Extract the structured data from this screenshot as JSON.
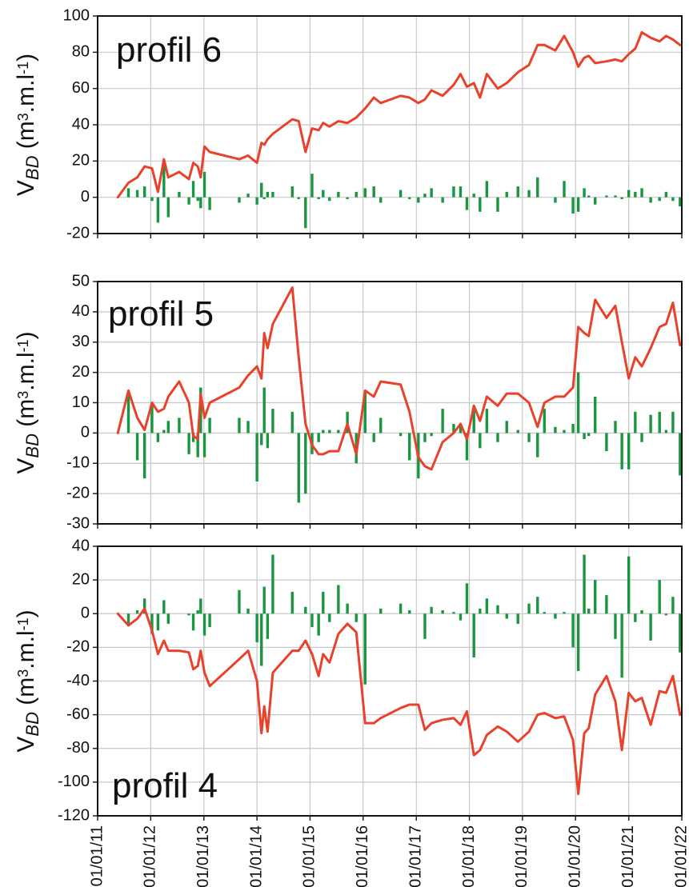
{
  "chart_data": [
    {
      "type": "combo",
      "annotation": "profil 6",
      "ylabel": {
        "parts": [
          "V",
          "BD",
          " (m",
          "3",
          ".m.l",
          "-1",
          ")"
        ],
        "styles": [
          "normal",
          "sub-italic",
          "normal",
          "sup",
          "normal",
          "sup",
          "normal"
        ]
      },
      "x": [
        "2011-05-20",
        "2011-08-01",
        "2011-10-01",
        "2011-11-20",
        "2012-01-10",
        "2012-02-20",
        "2012-04-01",
        "2012-05-01",
        "2012-07-15",
        "2012-09-20",
        "2012-10-20",
        "2012-11-20",
        "2012-12-10",
        "2013-01-05",
        "2013-02-10",
        "2013-09-01",
        "2013-11-01",
        "2014-01-01",
        "2014-02-01",
        "2014-02-20",
        "2014-03-15",
        "2014-04-20",
        "2014-09-01",
        "2014-10-15",
        "2014-12-01",
        "2015-01-15",
        "2015-03-01",
        "2015-04-01",
        "2015-05-15",
        "2015-07-15",
        "2015-09-15",
        "2015-11-15",
        "2016-01-15",
        "2016-03-15",
        "2016-05-01",
        "2016-09-15",
        "2016-11-15",
        "2017-01-15",
        "2017-03-01",
        "2017-04-15",
        "2017-07-01",
        "2017-09-15",
        "2017-11-01",
        "2017-12-15",
        "2018-02-01",
        "2018-03-15",
        "2018-05-01",
        "2018-07-15",
        "2018-09-15",
        "2018-12-01",
        "2019-02-15",
        "2019-04-15",
        "2019-06-01",
        "2019-08-15",
        "2019-10-15",
        "2019-12-15",
        "2020-01-20",
        "2020-03-01",
        "2020-04-01",
        "2020-05-15",
        "2020-08-01",
        "2020-10-01",
        "2020-11-15",
        "2021-01-01",
        "2021-02-15",
        "2021-04-01",
        "2021-06-01",
        "2021-08-01",
        "2021-09-15",
        "2021-11-01",
        "2021-12-20"
      ],
      "series": [
        {
          "type": "bar",
          "color": "#1a9641",
          "values": [
            null,
            5,
            4,
            6,
            -2,
            -14,
            18,
            -11,
            3,
            -4,
            9,
            -2,
            -6,
            14,
            -7,
            -3,
            2,
            -4,
            8,
            -1,
            3,
            3,
            6,
            -1,
            -17,
            13,
            -1,
            4,
            -2,
            3,
            -1,
            3,
            5,
            6,
            -3,
            4,
            -1,
            -3,
            2,
            5,
            -3,
            6,
            6,
            -7,
            2,
            -8,
            9,
            -8,
            3,
            6,
            4,
            11,
            0,
            -3,
            9,
            -9,
            -8,
            5,
            1,
            -4,
            1,
            1,
            -1,
            4,
            3,
            5,
            -3,
            -2,
            3,
            -2,
            -5
          ]
        },
        {
          "type": "line",
          "color": "#e8412c",
          "values": [
            0,
            8,
            11,
            17,
            16,
            3,
            21,
            11,
            14,
            10,
            19,
            17,
            11,
            28,
            25,
            21,
            23,
            19,
            30,
            29,
            32,
            35,
            43,
            42,
            25,
            38,
            37,
            41,
            39,
            42,
            41,
            44,
            49,
            55,
            52,
            56,
            55,
            52,
            54,
            59,
            56,
            62,
            68,
            61,
            63,
            55,
            68,
            60,
            63,
            69,
            73,
            84,
            84,
            81,
            89,
            80,
            72,
            77,
            78,
            74,
            75,
            76,
            75,
            79,
            82,
            91,
            88,
            86,
            89,
            87,
            84
          ]
        }
      ],
      "xlim": [
        "2011-01-01",
        "2022-01-01"
      ],
      "xticks": [
        "2011-01-01",
        "2012-01-01",
        "2013-01-01",
        "2014-01-01",
        "2015-01-01",
        "2016-01-01",
        "2017-01-01",
        "2018-01-01",
        "2019-01-01",
        "2020-01-01",
        "2021-01-01",
        "2022-01-01"
      ],
      "ylim": [
        -20,
        100
      ],
      "yticks": [
        -20,
        0,
        20,
        40,
        60,
        80,
        100
      ],
      "grid": true
    },
    {
      "type": "combo",
      "annotation": "profil 5",
      "ylabel": {
        "parts": [
          "V",
          "BD",
          " (m",
          "3",
          ".m.l",
          "-1",
          ")"
        ],
        "styles": [
          "normal",
          "sub-italic",
          "normal",
          "sup",
          "normal",
          "sup",
          "normal"
        ]
      },
      "x": [
        "2011-05-20",
        "2011-08-01",
        "2011-10-01",
        "2011-11-20",
        "2012-01-10",
        "2012-02-20",
        "2012-04-01",
        "2012-05-01",
        "2012-07-15",
        "2012-09-20",
        "2012-10-20",
        "2012-11-20",
        "2012-12-10",
        "2013-01-05",
        "2013-02-10",
        "2013-09-01",
        "2013-11-01",
        "2014-01-01",
        "2014-02-01",
        "2014-02-20",
        "2014-03-15",
        "2014-04-20",
        "2014-09-01",
        "2014-10-15",
        "2014-12-01",
        "2015-01-15",
        "2015-03-01",
        "2015-04-01",
        "2015-05-15",
        "2015-07-15",
        "2015-09-15",
        "2015-11-15",
        "2016-01-15",
        "2016-03-15",
        "2016-05-01",
        "2016-09-15",
        "2016-11-15",
        "2017-01-15",
        "2017-03-01",
        "2017-04-15",
        "2017-07-01",
        "2017-09-15",
        "2017-11-01",
        "2017-12-15",
        "2018-02-01",
        "2018-03-15",
        "2018-05-01",
        "2018-07-15",
        "2018-09-15",
        "2018-12-01",
        "2019-02-15",
        "2019-04-15",
        "2019-06-01",
        "2019-08-15",
        "2019-10-15",
        "2019-12-15",
        "2020-01-20",
        "2020-03-01",
        "2020-04-01",
        "2020-05-15",
        "2020-08-01",
        "2020-10-01",
        "2020-11-15",
        "2021-01-01",
        "2021-02-15",
        "2021-04-01",
        "2021-06-01",
        "2021-08-01",
        "2021-09-15",
        "2021-11-01",
        "2021-12-20"
      ],
      "series": [
        {
          "type": "bar",
          "color": "#1a9641",
          "values": [
            null,
            14,
            -9,
            -15,
            9,
            -3,
            1,
            4,
            5,
            -7,
            -3,
            -8,
            15,
            -8,
            5,
            5,
            4,
            -16,
            -4,
            15,
            -5,
            8,
            7,
            -23,
            -20,
            -7,
            -3,
            1,
            1,
            1,
            7,
            -10,
            14,
            -3,
            5,
            -1,
            -9,
            -15,
            -3,
            -1,
            8,
            3,
            3,
            -9,
            9,
            -5,
            8,
            -3,
            4,
            1,
            -3,
            -8,
            8,
            2,
            1,
            3,
            20,
            -2,
            -1,
            12,
            -6,
            4,
            -12,
            -12,
            7,
            -3,
            6,
            7,
            1,
            7,
            -14
          ]
        },
        {
          "type": "line",
          "color": "#e8412c",
          "values": [
            0,
            14,
            5,
            1,
            10,
            7,
            8,
            12,
            17,
            10,
            -1,
            -2,
            13,
            5,
            10,
            15,
            19,
            22,
            18,
            33,
            28,
            36,
            48,
            25,
            3,
            -4,
            -7,
            -7,
            -6,
            -6,
            3,
            -7,
            14,
            12,
            17,
            16,
            7,
            -8,
            -11,
            -12,
            -3,
            0,
            3,
            -2,
            9,
            4,
            12,
            9,
            13,
            13,
            10,
            2,
            10,
            12,
            12,
            15,
            35,
            33,
            32,
            44,
            38,
            42,
            30,
            18,
            25,
            22,
            28,
            35,
            36,
            43,
            29
          ]
        }
      ],
      "xlim": [
        "2011-01-01",
        "2022-01-01"
      ],
      "xticks": [
        "2011-01-01",
        "2012-01-01",
        "2013-01-01",
        "2014-01-01",
        "2015-01-01",
        "2016-01-01",
        "2017-01-01",
        "2018-01-01",
        "2019-01-01",
        "2020-01-01",
        "2021-01-01",
        "2022-01-01"
      ],
      "ylim": [
        -30,
        50
      ],
      "yticks": [
        -30,
        -20,
        -10,
        0,
        10,
        20,
        30,
        40,
        50
      ],
      "grid": true
    },
    {
      "type": "combo",
      "annotation": "profil 4",
      "ylabel": {
        "parts": [
          "V",
          "BD",
          " (m",
          "3",
          ".m.l",
          "-1",
          ")"
        ],
        "styles": [
          "normal",
          "sub-italic",
          "normal",
          "sup",
          "normal",
          "sup",
          "normal"
        ]
      },
      "x": [
        "2011-05-20",
        "2011-08-01",
        "2011-10-01",
        "2011-11-20",
        "2012-01-10",
        "2012-02-20",
        "2012-04-01",
        "2012-05-01",
        "2012-07-15",
        "2012-09-20",
        "2012-10-20",
        "2012-11-20",
        "2012-12-10",
        "2013-01-05",
        "2013-02-10",
        "2013-09-01",
        "2013-11-01",
        "2014-01-01",
        "2014-02-01",
        "2014-02-20",
        "2014-03-15",
        "2014-04-20",
        "2014-09-01",
        "2014-10-15",
        "2014-12-01",
        "2015-01-15",
        "2015-03-01",
        "2015-04-01",
        "2015-05-15",
        "2015-07-15",
        "2015-09-15",
        "2015-11-15",
        "2016-01-15",
        "2016-03-15",
        "2016-05-01",
        "2016-09-15",
        "2016-11-15",
        "2017-01-15",
        "2017-03-01",
        "2017-04-15",
        "2017-07-01",
        "2017-09-15",
        "2017-11-01",
        "2017-12-15",
        "2018-02-01",
        "2018-03-15",
        "2018-05-01",
        "2018-07-15",
        "2018-09-15",
        "2018-12-01",
        "2019-02-15",
        "2019-04-15",
        "2019-06-01",
        "2019-08-15",
        "2019-10-15",
        "2019-12-15",
        "2020-01-20",
        "2020-03-01",
        "2020-04-01",
        "2020-05-15",
        "2020-08-01",
        "2020-10-01",
        "2020-11-15",
        "2021-01-01",
        "2021-02-15",
        "2021-04-01",
        "2021-06-01",
        "2021-08-01",
        "2021-09-15",
        "2021-11-01",
        "2021-12-20"
      ],
      "series": [
        {
          "type": "bar",
          "color": "#1a9641",
          "values": [
            null,
            -6,
            2,
            9,
            -12,
            -10,
            8,
            -6,
            0,
            -1,
            -10,
            2,
            9,
            -13,
            -8,
            14,
            3,
            -17,
            -31,
            16,
            -15,
            35,
            13,
            0,
            4,
            -8,
            -13,
            13,
            -5,
            17,
            6,
            -5,
            -42,
            0,
            3,
            6,
            2,
            0,
            -15,
            4,
            2,
            1,
            -4,
            18,
            -26,
            3,
            9,
            5,
            -3,
            -6,
            6,
            10,
            1,
            -3,
            1,
            -20,
            -34,
            35,
            3,
            20,
            11,
            -15,
            -38,
            34,
            -5,
            2,
            -16,
            20,
            -1,
            10,
            -23
          ]
        },
        {
          "type": "line",
          "color": "#e8412c",
          "values": [
            0,
            -7,
            -3,
            3,
            -10,
            -24,
            -16,
            -22,
            -22,
            -23,
            -33,
            -31,
            -22,
            -35,
            -43,
            -27,
            -22,
            -40,
            -71,
            -55,
            -70,
            -35,
            -22,
            -22,
            -16,
            -24,
            -37,
            -24,
            -29,
            -12,
            -6,
            -11,
            -65,
            -65,
            -62,
            -56,
            -54,
            -54,
            -69,
            -65,
            -63,
            -62,
            -66,
            -58,
            -84,
            -81,
            -72,
            -67,
            -70,
            -76,
            -70,
            -60,
            -59,
            -62,
            -61,
            -75,
            -107,
            -71,
            -68,
            -48,
            -37,
            -52,
            -81,
            -47,
            -52,
            -50,
            -66,
            -46,
            -47,
            -37,
            -60
          ]
        }
      ],
      "xlim": [
        "2011-01-01",
        "2022-01-01"
      ],
      "xticks": [
        {
          "value": "2011-01-01",
          "label": "01/01/11"
        },
        {
          "value": "2012-01-01",
          "label": "01/01/12"
        },
        {
          "value": "2013-01-01",
          "label": "01/01/13"
        },
        {
          "value": "2014-01-01",
          "label": "01/01/14"
        },
        {
          "value": "2015-01-01",
          "label": "01/01/15"
        },
        {
          "value": "2016-01-01",
          "label": "01/01/16"
        },
        {
          "value": "2017-01-01",
          "label": "01/01/17"
        },
        {
          "value": "2018-01-01",
          "label": "01/01/18"
        },
        {
          "value": "2019-01-01",
          "label": "01/01/19"
        },
        {
          "value": "2020-01-01",
          "label": "01/01/20"
        },
        {
          "value": "2021-01-01",
          "label": "01/01/21"
        },
        {
          "value": "2022-01-01",
          "label": "01/01/22"
        }
      ],
      "ylim": [
        -120,
        40
      ],
      "yticks": [
        -120,
        -100,
        -80,
        -60,
        -40,
        -20,
        0,
        20,
        40
      ],
      "grid": true
    }
  ]
}
